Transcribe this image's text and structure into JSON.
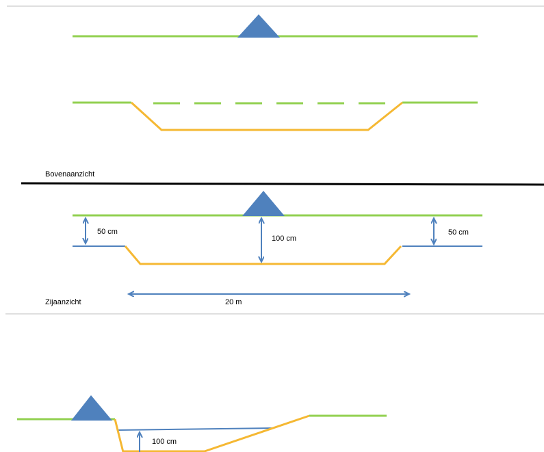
{
  "labels": {
    "top_view": "Bovenaanzicht",
    "side_view": "Zijaanzicht",
    "depth_left": "50 cm",
    "depth_center": "100 cm",
    "depth_right": "50 cm",
    "width": "20 m",
    "depth_bottom": "100 cm"
  },
  "colors": {
    "ground_line": "#92D050",
    "ditch_outline": "#F5B833",
    "water_line": "#4F81BD",
    "marker_fill": "#4F81BD",
    "divider": "#000000",
    "separator": "#BFBFBF",
    "text": "#000000"
  },
  "icons": {
    "observer_marker": "triangle"
  }
}
